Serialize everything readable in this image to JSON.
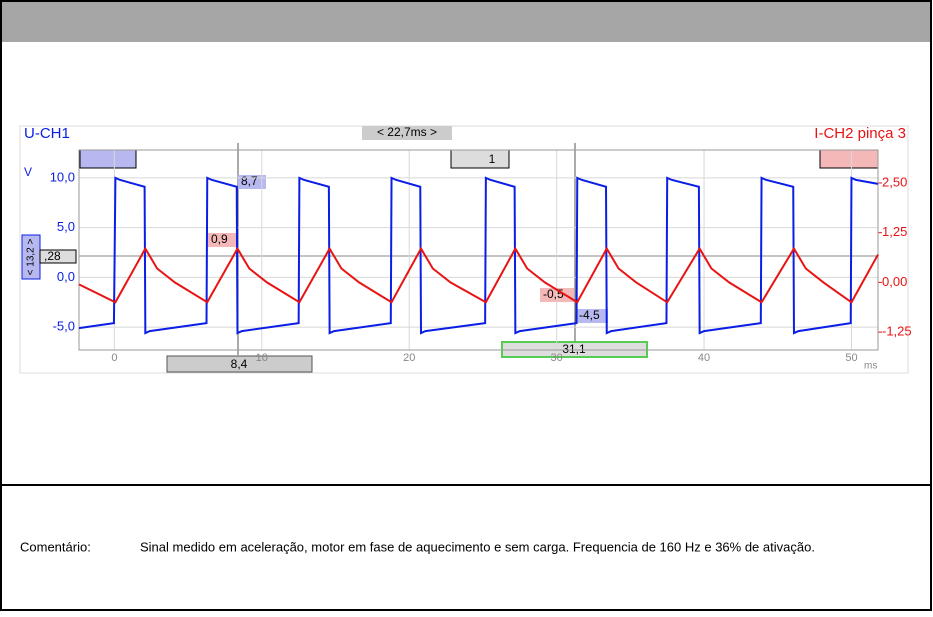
{
  "chart_data": {
    "type": "line",
    "left_channel": "U-CH1",
    "right_channel": "I-CH2 pinça 3",
    "y_unit": "V",
    "x_unit": "ms",
    "time_span": "< 22,7ms >",
    "trigger": "1",
    "cursor_time_a": "8,4",
    "cursor_time_b": "31,1",
    "side_readout": "< 13,2 >",
    "side_value": ",28",
    "readouts": [
      "8,7",
      "0,9",
      "-0,5",
      "-4,5"
    ],
    "xlim": [
      -2.4,
      51.8
    ],
    "xticks": [
      0,
      10,
      20,
      30,
      40,
      50
    ],
    "ylim": [
      -7.3,
      12.8
    ],
    "yticks": [
      {
        "value": 10,
        "label": "10,0"
      },
      {
        "value": 5,
        "label": "5,0"
      },
      {
        "value": 0,
        "label": "0,0"
      },
      {
        "value": -5,
        "label": "-5,0"
      }
    ],
    "y2lim": [
      -1.7,
      3.33
    ],
    "y2ticks": [
      {
        "value": 2.5,
        "label": "2,50"
      },
      {
        "value": 1.25,
        "label": "1,25"
      },
      {
        "value": 0,
        "label": "0,00"
      },
      {
        "value": -1.25,
        "label": "-1,25"
      }
    ],
    "grid": true,
    "series": [
      {
        "name": "U-CH1",
        "color": "#0a1ee6",
        "x": [
          -2.4,
          -0.03,
          0.07,
          0.37,
          2.05,
          2.1,
          2.4,
          6.25,
          6.3,
          6.6,
          8.3,
          8.35,
          8.65,
          12.5,
          12.55,
          12.85,
          14.55,
          14.6,
          14.9,
          18.75,
          18.8,
          19.1,
          20.75,
          20.8,
          21.1,
          25.15,
          25.2,
          25.5,
          27.15,
          27.2,
          27.5,
          31.35,
          31.4,
          31.7,
          33.35,
          33.4,
          33.7,
          37.45,
          37.5,
          37.8,
          39.65,
          39.7,
          40.0,
          43.85,
          43.9,
          44.2,
          46.05,
          46.1,
          46.4,
          49.95,
          50.0,
          50.3,
          51.8
        ],
        "values": [
          -5.1,
          -4.6,
          10.0,
          9.8,
          9.1,
          -5.6,
          -5.4,
          -4.6,
          10.0,
          9.8,
          9.1,
          -5.6,
          -5.4,
          -4.6,
          10.0,
          9.8,
          9.1,
          -5.6,
          -5.4,
          -4.6,
          10.0,
          9.8,
          9.1,
          -5.6,
          -5.4,
          -4.6,
          10.0,
          9.8,
          9.1,
          -5.6,
          -5.4,
          -4.6,
          10.0,
          9.8,
          9.1,
          -5.6,
          -5.4,
          -4.6,
          10.0,
          9.8,
          9.1,
          -5.6,
          -5.4,
          -4.6,
          10.0,
          9.8,
          9.1,
          -5.6,
          -5.4,
          -4.6,
          10.0,
          9.8,
          9.4
        ]
      },
      {
        "name": "I-CH2 pinça 3",
        "color": "#e81414",
        "axis": "y2",
        "x": [
          -2.4,
          0.07,
          2.1,
          2.9,
          4.1,
          6.3,
          8.35,
          9.15,
          10.35,
          12.55,
          14.6,
          15.4,
          16.6,
          18.8,
          20.8,
          21.6,
          22.8,
          25.2,
          27.2,
          28.0,
          29.2,
          31.4,
          33.4,
          34.2,
          35.4,
          37.5,
          39.7,
          40.5,
          41.7,
          43.9,
          46.1,
          46.9,
          48.1,
          50.0,
          51.8
        ],
        "values": [
          -0.05,
          -0.5,
          0.85,
          0.35,
          0.0,
          -0.5,
          0.85,
          0.35,
          0.0,
          -0.5,
          0.85,
          0.35,
          0.0,
          -0.5,
          0.85,
          0.35,
          0.0,
          -0.5,
          0.85,
          0.35,
          0.0,
          -0.5,
          0.85,
          0.35,
          0.0,
          -0.5,
          0.85,
          0.35,
          0.0,
          -0.5,
          0.85,
          0.35,
          0.0,
          -0.5,
          0.7
        ]
      }
    ]
  },
  "comment_label": "Comentário:",
  "comment": "Sinal medido em aceleração, motor em fase de aquecimento e sem carga. Frequencia de 160 Hz e 36% de ativação."
}
